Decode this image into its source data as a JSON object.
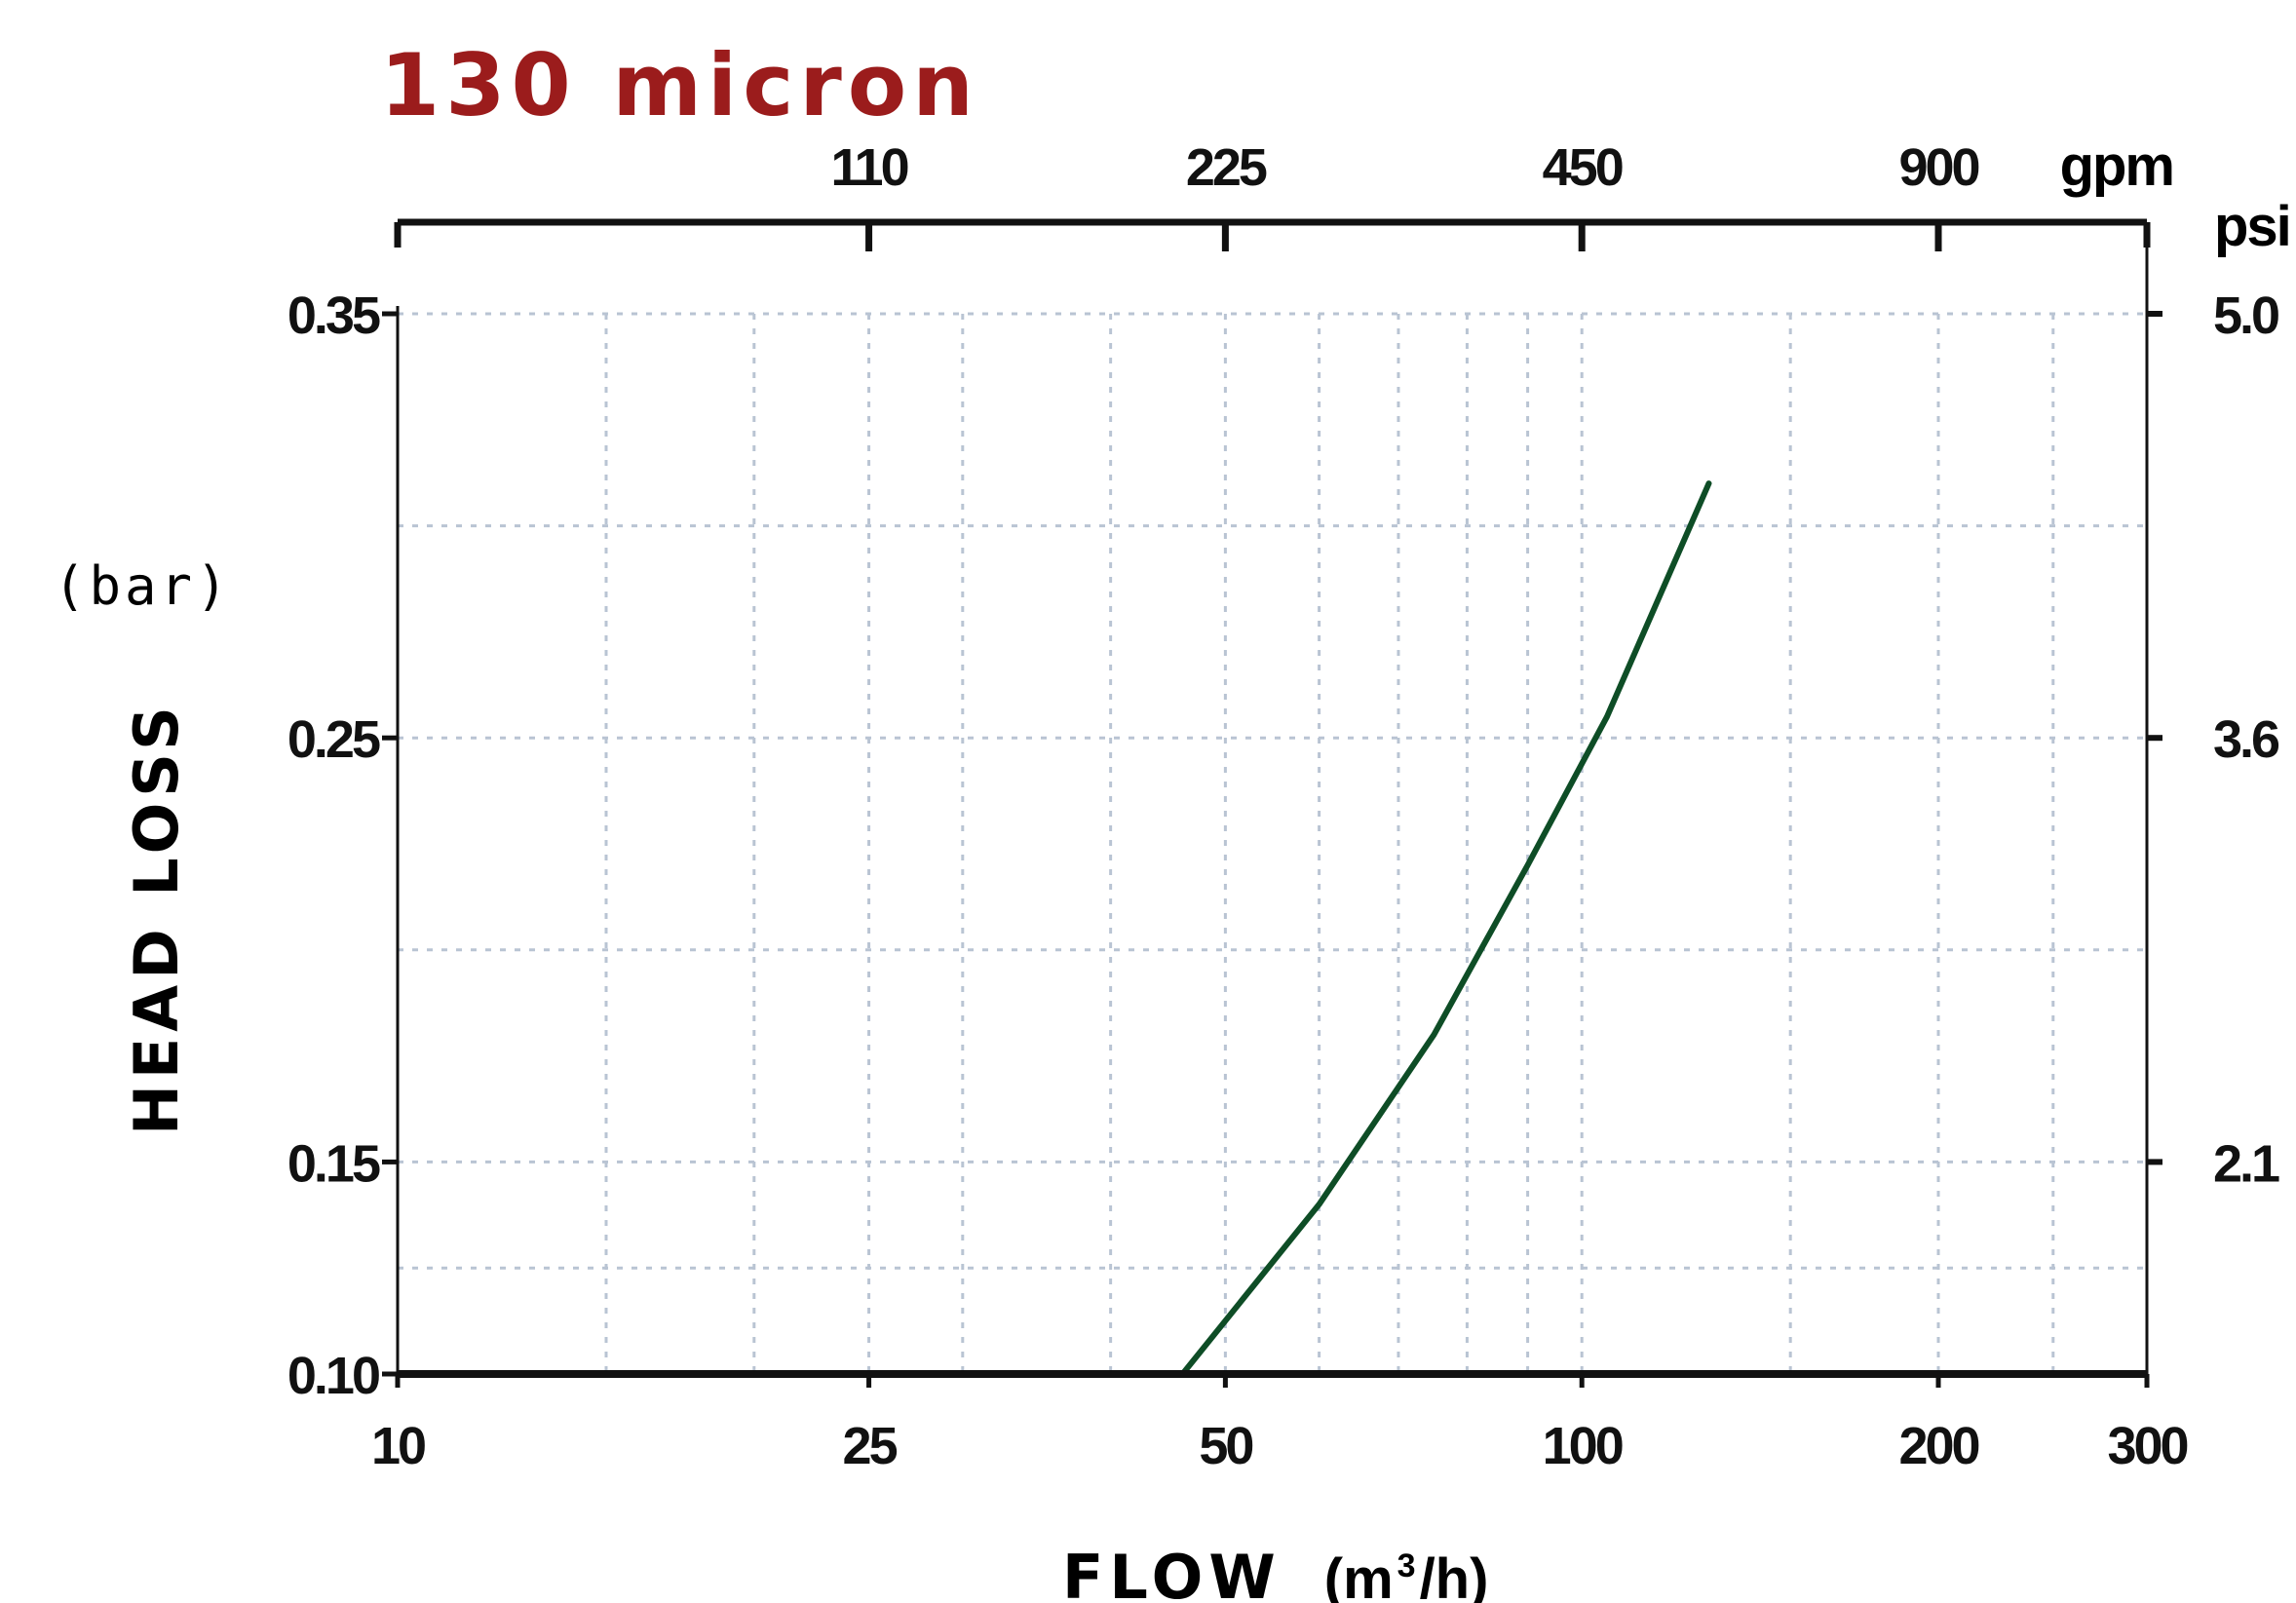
{
  "chart_data": {
    "type": "line",
    "title": "130 micron",
    "xlabel": "FLOW",
    "xlabel_unit_prefix": "(m",
    "xlabel_unit_sup": "3",
    "xlabel_unit_suffix": "/h)",
    "ylabel": "HEAD LOSS",
    "ylabel_unit": "(bar)",
    "x_scale": "log",
    "xlim": [
      10,
      300
    ],
    "ylim": [
      0.1,
      0.35
    ],
    "x_ticks": [
      {
        "value": 10,
        "label": "10"
      },
      {
        "value": 25,
        "label": "25"
      },
      {
        "value": 50,
        "label": "50"
      },
      {
        "value": 100,
        "label": "100"
      },
      {
        "value": 200,
        "label": "200"
      },
      {
        "value": 300,
        "label": "300"
      }
    ],
    "y_ticks": [
      {
        "value": 0.1,
        "label": "0.10"
      },
      {
        "value": 0.15,
        "label": "0.15"
      },
      {
        "value": 0.25,
        "label": "0.25"
      },
      {
        "value": 0.35,
        "label": "0.35"
      }
    ],
    "top_axis": {
      "unit": "gpm",
      "ticks": [
        {
          "value": 25,
          "label": "110"
        },
        {
          "value": 50,
          "label": "225"
        },
        {
          "value": 100,
          "label": "450"
        },
        {
          "value": 200,
          "label": "900"
        }
      ]
    },
    "right_axis": {
      "unit": "psi",
      "ticks": [
        {
          "value": 0.35,
          "label": "5.0"
        },
        {
          "value": 0.25,
          "label": "3.6"
        },
        {
          "value": 0.15,
          "label": "2.1"
        }
      ]
    },
    "grid": true,
    "x_grid": [
      10,
      15,
      20,
      25,
      30,
      40,
      50,
      60,
      70,
      80,
      90,
      100,
      150,
      200,
      250,
      300
    ],
    "y_grid": [
      0.1,
      0.125,
      0.15,
      0.2,
      0.25,
      0.3,
      0.35
    ],
    "series": [
      {
        "color": "#0e4d26",
        "x": [
          46,
          60,
          75,
          90,
          105,
          128
        ],
        "y": [
          0.1,
          0.14,
          0.18,
          0.22,
          0.255,
          0.31
        ]
      }
    ],
    "colors": {
      "title": "#9b1c1c",
      "axis": "#111111",
      "grid": "#b9c4d3"
    }
  }
}
